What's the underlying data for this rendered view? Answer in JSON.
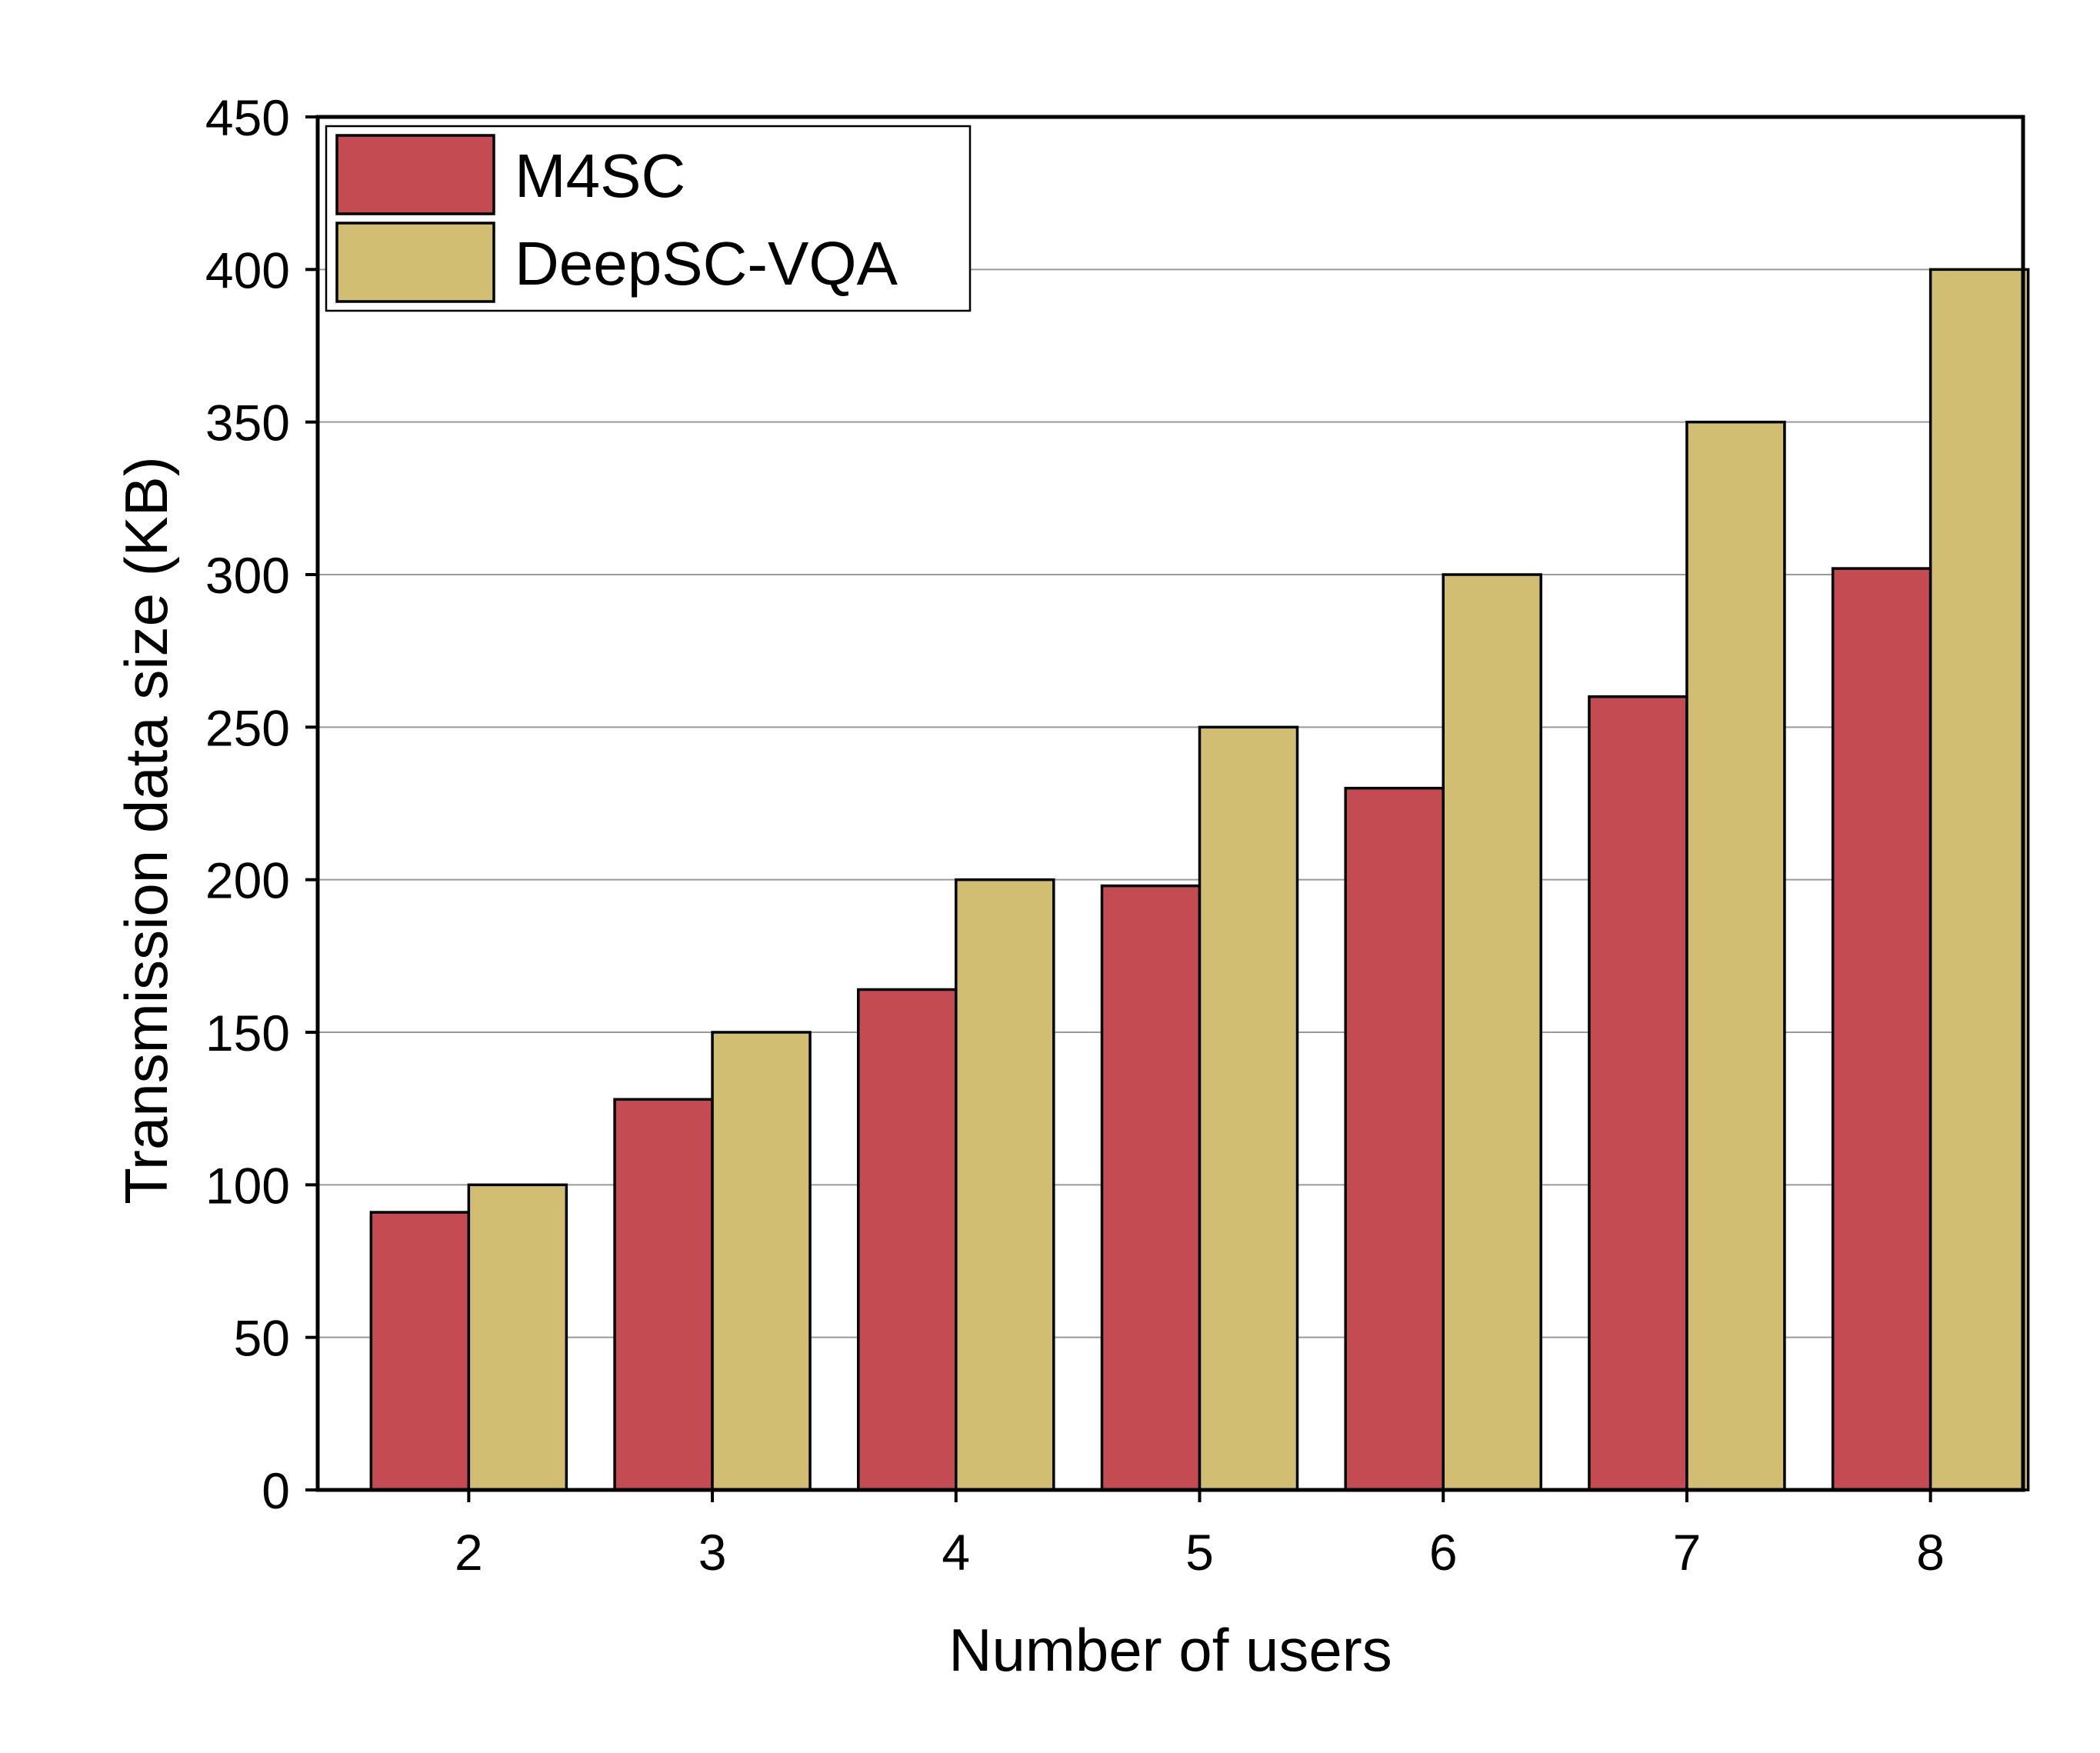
{
  "chart_data": {
    "type": "bar",
    "title": "",
    "xlabel": "Number of users",
    "ylabel": "Transmission data size (KB)",
    "categories": [
      "2",
      "3",
      "4",
      "5",
      "6",
      "7",
      "8"
    ],
    "series": [
      {
        "name": "M4SC",
        "color": "#c44b52",
        "values": [
          91,
          128,
          164,
          198,
          230,
          260,
          302
        ]
      },
      {
        "name": "DeepSC-VQA",
        "color": "#d1be73",
        "values": [
          100,
          150,
          200,
          250,
          300,
          350,
          400
        ]
      }
    ],
    "ylim": [
      0,
      450
    ],
    "yticks": [
      0,
      50,
      100,
      150,
      200,
      250,
      300,
      350,
      400,
      450
    ],
    "ytick_labels": [
      "0",
      "50",
      "100",
      "150",
      "200",
      "250",
      "300",
      "350",
      "400",
      "450"
    ],
    "grid": true,
    "legend_position": "top-left"
  }
}
